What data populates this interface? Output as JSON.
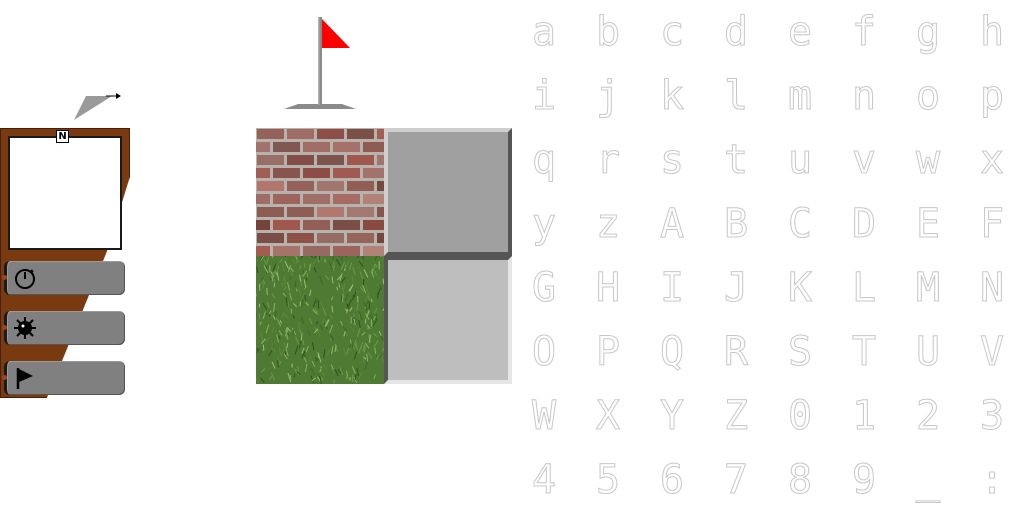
{
  "hud": {
    "north_label": "N",
    "buttons": [
      {
        "icon": "stopwatch-icon"
      },
      {
        "icon": "mine-icon"
      },
      {
        "icon": "flag-icon"
      }
    ],
    "panel_color": "#7a3a0f",
    "button_color": "#808080"
  },
  "flag": {
    "icon": "flag-icon",
    "color": "#ff0000"
  },
  "tiles": [
    "brick-wall",
    "grass",
    "raised-gray",
    "sunken-gray"
  ],
  "glyphs": [
    "a",
    "b",
    "c",
    "d",
    "e",
    "f",
    "g",
    "h",
    "i",
    "j",
    "k",
    "l",
    "m",
    "n",
    "o",
    "p",
    "q",
    "r",
    "s",
    "t",
    "u",
    "v",
    "w",
    "x",
    "y",
    "z",
    "A",
    "B",
    "C",
    "D",
    "E",
    "F",
    "G",
    "H",
    "I",
    "J",
    "K",
    "L",
    "M",
    "N",
    "O",
    "P",
    "Q",
    "R",
    "S",
    "T",
    "U",
    "V",
    "W",
    "X",
    "Y",
    "Z",
    "0",
    "1",
    "2",
    "3",
    "4",
    "5",
    "6",
    "7",
    "8",
    "9",
    "_",
    ":"
  ]
}
